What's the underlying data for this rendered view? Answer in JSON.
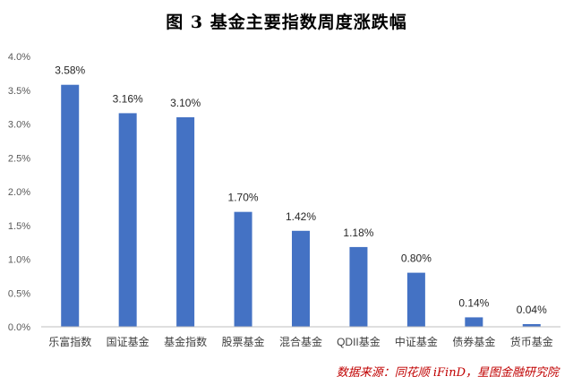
{
  "header": {
    "title": "图 3   基金主要指数周度涨跌幅"
  },
  "footer": {
    "source": "数据来源：同花顺 iFinD，星图金融研究院"
  },
  "colors": {
    "bar": "#4472c4",
    "axis": "#bfbfbf",
    "source_text": "#c00000"
  },
  "chart_data": {
    "type": "bar",
    "title": "图 3   基金主要指数周度涨跌幅",
    "xlabel": "",
    "ylabel": "",
    "categories": [
      "乐富指数",
      "国证基金",
      "基金指数",
      "股票基金",
      "混合基金",
      "QDII基金",
      "中证基金",
      "债券基金",
      "货币基金"
    ],
    "values": [
      3.58,
      3.16,
      3.1,
      1.7,
      1.42,
      1.18,
      0.8,
      0.14,
      0.04
    ],
    "data_labels": [
      "3.58%",
      "3.16%",
      "3.10%",
      "1.70%",
      "1.42%",
      "1.18%",
      "0.80%",
      "0.14%",
      "0.04%"
    ],
    "ylim": [
      0,
      4
    ],
    "yticks": [
      0,
      0.5,
      1.0,
      1.5,
      2.0,
      2.5,
      3.0,
      3.5,
      4.0
    ],
    "ytick_labels": [
      "0.0%",
      "0.5%",
      "1.0%",
      "1.5%",
      "2.0%",
      "2.5%",
      "3.0%",
      "3.5%",
      "4.0%"
    ],
    "grid": false,
    "legend": "none"
  }
}
